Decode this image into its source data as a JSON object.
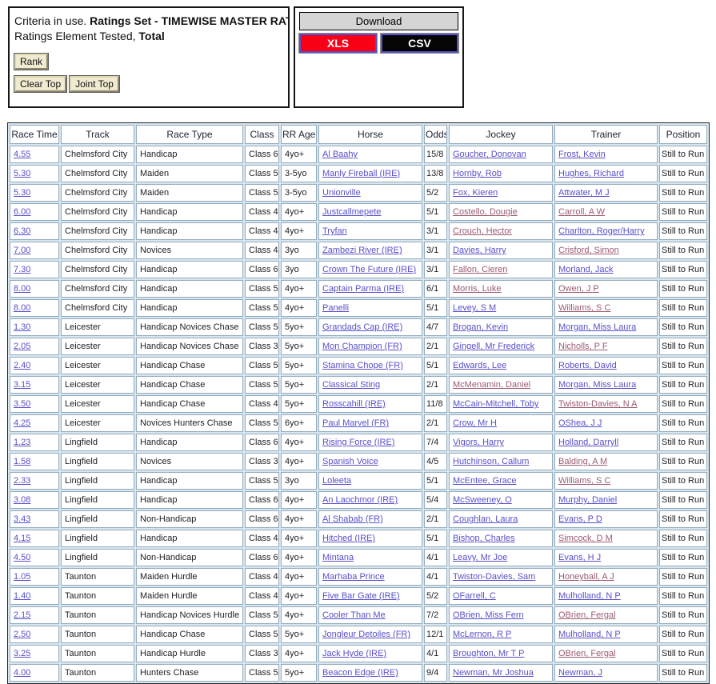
{
  "colors": {
    "link": "#5750c9",
    "link_visited": "#9b5a73",
    "xls_bg": "#f90016",
    "csv_bg": "#050505",
    "table_bg": "#d9e6ef"
  },
  "criteria": {
    "line1_normal": "Criteria in use. ",
    "line1_bold": "Ratings Set - TIMEWISE MASTER RATI",
    "line2_normal": "Ratings Element Tested, ",
    "line2_bold": "Total",
    "rank_label": "Rank",
    "clear_top_label": "Clear Top",
    "joint_top_label": "Joint Top"
  },
  "download": {
    "title": "Download",
    "xls_label": "XLS",
    "csv_label": "CSV"
  },
  "table": {
    "headers": [
      "Race Time",
      "Track",
      "Race Type",
      "Class",
      "RR Age",
      "Horse",
      "Odds",
      "Jockey",
      "Trainer",
      "Position"
    ],
    "rows": [
      {
        "time": "4.55",
        "track": "Chelmsford City",
        "race_type": "Handicap",
        "race_class": "Class 6",
        "rr_age": "4yo+",
        "horse": "Al Baahy",
        "odds": "15/8",
        "jockey": "Goucher, Donovan",
        "jockey_visited": false,
        "trainer": "Frost, Kevin",
        "trainer_visited": false,
        "position": "Still to Run"
      },
      {
        "time": "5.30",
        "track": "Chelmsford City",
        "race_type": "Maiden",
        "race_class": "Class 5",
        "rr_age": "3-5yo",
        "horse": "Manly Fireball (IRE)",
        "odds": "13/8",
        "jockey": "Hornby, Rob",
        "jockey_visited": false,
        "trainer": "Hughes, Richard",
        "trainer_visited": false,
        "position": "Still to Run"
      },
      {
        "time": "5.30",
        "track": "Chelmsford City",
        "race_type": "Maiden",
        "race_class": "Class 5",
        "rr_age": "3-5yo",
        "horse": "Unionville",
        "odds": "5/2",
        "jockey": "Fox, Kieren",
        "jockey_visited": false,
        "trainer": "Attwater, M J",
        "trainer_visited": false,
        "position": "Still to Run"
      },
      {
        "time": "6.00",
        "track": "Chelmsford City",
        "race_type": "Handicap",
        "race_class": "Class 4",
        "rr_age": "4yo+",
        "horse": "Justcallmepete",
        "odds": "5/1",
        "jockey": "Costello, Dougie",
        "jockey_visited": true,
        "trainer": "Carroll, A W",
        "trainer_visited": true,
        "position": "Still to Run"
      },
      {
        "time": "6.30",
        "track": "Chelmsford City",
        "race_type": "Handicap",
        "race_class": "Class 4",
        "rr_age": "4yo+",
        "horse": "Tryfan",
        "odds": "3/1",
        "jockey": "Crouch, Hector",
        "jockey_visited": true,
        "trainer": "Charlton, Roger/Harry",
        "trainer_visited": false,
        "position": "Still to Run"
      },
      {
        "time": "7.00",
        "track": "Chelmsford City",
        "race_type": "Novices",
        "race_class": "Class 4",
        "rr_age": "3yo",
        "horse": "Zambezi River (IRE)",
        "odds": "3/1",
        "jockey": "Davies, Harry",
        "jockey_visited": false,
        "trainer": "Crisford, Simon",
        "trainer_visited": true,
        "position": "Still to Run"
      },
      {
        "time": "7.30",
        "track": "Chelmsford City",
        "race_type": "Handicap",
        "race_class": "Class 6",
        "rr_age": "3yo",
        "horse": "Crown The Future (IRE)",
        "odds": "3/1",
        "jockey": "Fallon, Cieren",
        "jockey_visited": true,
        "trainer": "Morland, Jack",
        "trainer_visited": false,
        "position": "Still to Run"
      },
      {
        "time": "8.00",
        "track": "Chelmsford City",
        "race_type": "Handicap",
        "race_class": "Class 5",
        "rr_age": "4yo+",
        "horse": "Captain Parma (IRE)",
        "odds": "6/1",
        "jockey": "Morris, Luke",
        "jockey_visited": true,
        "trainer": "Owen, J P",
        "trainer_visited": true,
        "position": "Still to Run"
      },
      {
        "time": "8.00",
        "track": "Chelmsford City",
        "race_type": "Handicap",
        "race_class": "Class 5",
        "rr_age": "4yo+",
        "horse": "Panelli",
        "odds": "5/1",
        "jockey": "Levey, S M",
        "jockey_visited": false,
        "trainer": "Williams, S C",
        "trainer_visited": true,
        "position": "Still to Run"
      },
      {
        "time": "1.30",
        "track": "Leicester",
        "race_type": "Handicap Novices Chase",
        "race_class": "Class 5",
        "rr_age": "5yo+",
        "horse": "Grandads Cap (IRE)",
        "odds": "4/7",
        "jockey": "Brogan, Kevin",
        "jockey_visited": false,
        "trainer": "Morgan, Miss Laura",
        "trainer_visited": false,
        "position": "Still to Run"
      },
      {
        "time": "2.05",
        "track": "Leicester",
        "race_type": "Handicap Novices Chase",
        "race_class": "Class 3",
        "rr_age": "5yo+",
        "horse": "Mon Champion (FR)",
        "odds": "2/1",
        "jockey": "Gingell, Mr Frederick",
        "jockey_visited": false,
        "trainer": "Nicholls, P F",
        "trainer_visited": true,
        "position": "Still to Run"
      },
      {
        "time": "2.40",
        "track": "Leicester",
        "race_type": "Handicap Chase",
        "race_class": "Class 5",
        "rr_age": "5yo+",
        "horse": "Stamina Chope (FR)",
        "odds": "5/1",
        "jockey": "Edwards, Lee",
        "jockey_visited": false,
        "trainer": "Roberts, David",
        "trainer_visited": false,
        "position": "Still to Run"
      },
      {
        "time": "3.15",
        "track": "Leicester",
        "race_type": "Handicap Chase",
        "race_class": "Class 5",
        "rr_age": "5yo+",
        "horse": "Classical Sting",
        "odds": "2/1",
        "jockey": "McMenamin, Daniel",
        "jockey_visited": true,
        "trainer": "Morgan, Miss Laura",
        "trainer_visited": false,
        "position": "Still to Run"
      },
      {
        "time": "3.50",
        "track": "Leicester",
        "race_type": "Handicap Chase",
        "race_class": "Class 4",
        "rr_age": "5yo+",
        "horse": "Rosscahill (IRE)",
        "odds": "11/8",
        "jockey": "McCain-Mitchell, Toby",
        "jockey_visited": false,
        "trainer": "Twiston-Davies, N A",
        "trainer_visited": true,
        "position": "Still to Run"
      },
      {
        "time": "4.25",
        "track": "Leicester",
        "race_type": "Novices Hunters Chase",
        "race_class": "Class 5",
        "rr_age": "6yo+",
        "horse": "Paul Marvel (FR)",
        "odds": "2/1",
        "jockey": "Crow, Mr H",
        "jockey_visited": false,
        "trainer": "OShea, J J",
        "trainer_visited": false,
        "position": "Still to Run"
      },
      {
        "time": "1.23",
        "track": "Lingfield",
        "race_type": "Handicap",
        "race_class": "Class 6",
        "rr_age": "4yo+",
        "horse": "Rising Force (IRE)",
        "odds": "7/4",
        "jockey": "Vigors, Harry",
        "jockey_visited": false,
        "trainer": "Holland, Darryll",
        "trainer_visited": false,
        "position": "Still to Run"
      },
      {
        "time": "1.58",
        "track": "Lingfield",
        "race_type": "Novices",
        "race_class": "Class 3",
        "rr_age": "4yo+",
        "horse": "Spanish Voice",
        "odds": "4/5",
        "jockey": "Hutchinson, Callum",
        "jockey_visited": false,
        "trainer": "Balding, A M",
        "trainer_visited": true,
        "position": "Still to Run"
      },
      {
        "time": "2.33",
        "track": "Lingfield",
        "race_type": "Handicap",
        "race_class": "Class 5",
        "rr_age": "3yo",
        "horse": "Loleeta",
        "odds": "5/1",
        "jockey": "McEntee, Grace",
        "jockey_visited": false,
        "trainer": "Williams, S C",
        "trainer_visited": true,
        "position": "Still to Run"
      },
      {
        "time": "3.08",
        "track": "Lingfield",
        "race_type": "Handicap",
        "race_class": "Class 6",
        "rr_age": "4yo+",
        "horse": "An Laochmor (IRE)",
        "odds": "5/4",
        "jockey": "McSweeney, O",
        "jockey_visited": false,
        "trainer": "Murphy, Daniel",
        "trainer_visited": false,
        "position": "Still to Run"
      },
      {
        "time": "3.43",
        "track": "Lingfield",
        "race_type": "Non-Handicap",
        "race_class": "Class 6",
        "rr_age": "4yo+",
        "horse": "Al Shabab (FR)",
        "odds": "2/1",
        "jockey": "Coughlan, Laura",
        "jockey_visited": false,
        "trainer": "Evans, P D",
        "trainer_visited": false,
        "position": "Still to Run"
      },
      {
        "time": "4.15",
        "track": "Lingfield",
        "race_type": "Handicap",
        "race_class": "Class 4",
        "rr_age": "4yo+",
        "horse": "Hitched (IRE)",
        "odds": "5/1",
        "jockey": "Bishop, Charles",
        "jockey_visited": false,
        "trainer": "Simcock, D M",
        "trainer_visited": true,
        "position": "Still to Run"
      },
      {
        "time": "4.50",
        "track": "Lingfield",
        "race_type": "Non-Handicap",
        "race_class": "Class 6",
        "rr_age": "4yo+",
        "horse": "Mintana",
        "odds": "4/1",
        "jockey": "Leavy, Mr Joe",
        "jockey_visited": false,
        "trainer": "Evans, H J",
        "trainer_visited": false,
        "position": "Still to Run"
      },
      {
        "time": "1.05",
        "track": "Taunton",
        "race_type": "Maiden Hurdle",
        "race_class": "Class 4",
        "rr_age": "4yo+",
        "horse": "Marhaba Prince",
        "odds": "4/1",
        "jockey": "Twiston-Davies, Sam",
        "jockey_visited": false,
        "trainer": "Honeyball, A J",
        "trainer_visited": true,
        "position": "Still to Run"
      },
      {
        "time": "1.40",
        "track": "Taunton",
        "race_type": "Maiden Hurdle",
        "race_class": "Class 4",
        "rr_age": "4yo+",
        "horse": "Five Bar Gate (IRE)",
        "odds": "5/2",
        "jockey": "OFarrell, C",
        "jockey_visited": false,
        "trainer": "Mulholland, N P",
        "trainer_visited": false,
        "position": "Still to Run"
      },
      {
        "time": "2.15",
        "track": "Taunton",
        "race_type": "Handicap Novices Hurdle",
        "race_class": "Class 5",
        "rr_age": "4yo+",
        "horse": "Cooler Than Me",
        "odds": "7/2",
        "jockey": "OBrien, Miss Fern",
        "jockey_visited": false,
        "trainer": "OBrien, Fergal",
        "trainer_visited": true,
        "position": "Still to Run"
      },
      {
        "time": "2.50",
        "track": "Taunton",
        "race_type": "Handicap Chase",
        "race_class": "Class 5",
        "rr_age": "5yo+",
        "horse": "Jongleur Detoiles (FR)",
        "odds": "12/1",
        "jockey": "McLernon, R P",
        "jockey_visited": false,
        "trainer": "Mulholland, N P",
        "trainer_visited": false,
        "position": "Still to Run"
      },
      {
        "time": "3.25",
        "track": "Taunton",
        "race_type": "Handicap Hurdle",
        "race_class": "Class 3",
        "rr_age": "4yo+",
        "horse": "Jack Hyde (IRE)",
        "odds": "4/1",
        "jockey": "Broughton, Mr T P",
        "jockey_visited": false,
        "trainer": "OBrien, Fergal",
        "trainer_visited": true,
        "position": "Still to Run"
      },
      {
        "time": "4.00",
        "track": "Taunton",
        "race_type": "Hunters Chase",
        "race_class": "Class 5",
        "rr_age": "5yo+",
        "horse": "Beacon Edge (IRE)",
        "odds": "9/4",
        "jockey": "Newman, Mr Joshua",
        "jockey_visited": false,
        "trainer": "Newman, J",
        "trainer_visited": false,
        "position": "Still to Run"
      }
    ]
  }
}
